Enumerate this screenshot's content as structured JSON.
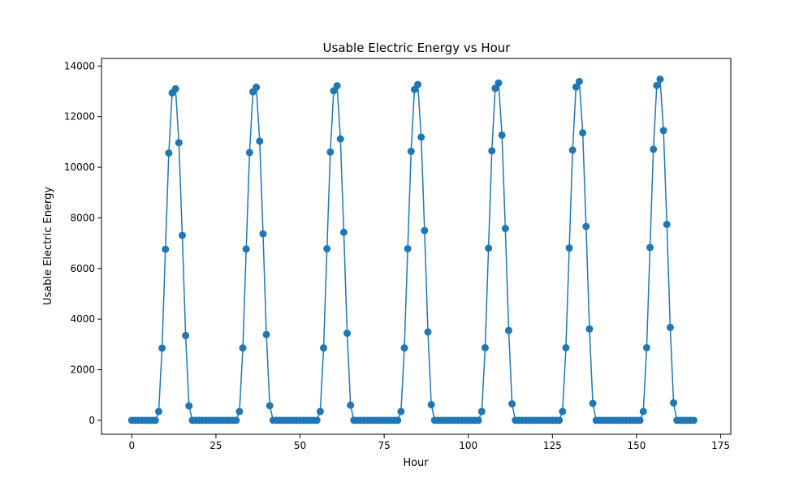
{
  "chart_data": {
    "type": "line",
    "title": "Usable Electric Energy vs Hour",
    "xlabel": "Hour",
    "ylabel": "Usable Electric Energy",
    "xlim": [
      -9,
      178
    ],
    "ylim": [
      -550,
      14300
    ],
    "xticks": [
      0,
      25,
      50,
      75,
      100,
      125,
      150,
      175
    ],
    "yticks": [
      0,
      2000,
      4000,
      6000,
      8000,
      10000,
      12000,
      14000
    ],
    "grid": false,
    "marker": "circle",
    "colors": {
      "series": "#1f77b4",
      "axis": "#000000"
    },
    "series": [
      {
        "x": [
          0,
          1,
          2,
          3,
          4,
          5,
          6,
          7,
          8,
          9,
          10,
          11,
          12,
          13,
          14,
          15,
          16,
          17,
          18,
          19,
          20,
          21,
          22,
          23,
          24,
          25,
          26,
          27,
          28,
          29,
          30,
          31,
          32,
          33,
          34,
          35,
          36,
          37,
          38,
          39,
          40,
          41,
          42,
          43,
          44,
          45,
          46,
          47,
          48,
          49,
          50,
          51,
          52,
          53,
          54,
          55,
          56,
          57,
          58,
          59,
          60,
          61,
          62,
          63,
          64,
          65,
          66,
          67,
          68,
          69,
          70,
          71,
          72,
          73,
          74,
          75,
          76,
          77,
          78,
          79,
          80,
          81,
          82,
          83,
          84,
          85,
          86,
          87,
          88,
          89,
          90,
          91,
          92,
          93,
          94,
          95,
          96,
          97,
          98,
          99,
          100,
          101,
          102,
          103,
          104,
          105,
          106,
          107,
          108,
          109,
          110,
          111,
          112,
          113,
          114,
          115,
          116,
          117,
          118,
          119,
          120,
          121,
          122,
          123,
          124,
          125,
          126,
          127,
          128,
          129,
          130,
          131,
          132,
          133,
          134,
          135,
          136,
          137,
          138,
          139,
          140,
          141,
          142,
          143,
          144,
          145,
          146,
          147,
          148,
          149,
          150,
          151,
          152,
          153,
          154,
          155,
          156,
          157,
          158,
          159,
          160,
          161,
          162,
          163,
          164,
          165,
          166,
          167
        ],
        "y": [
          0,
          0,
          0,
          0,
          0,
          0,
          0,
          0,
          350,
          2850,
          6760,
          10560,
          12940,
          13100,
          10970,
          7310,
          3350,
          570,
          0,
          0,
          0,
          0,
          0,
          0,
          0,
          0,
          0,
          0,
          0,
          0,
          0,
          0,
          350,
          2860,
          6770,
          10580,
          12980,
          13160,
          11030,
          7370,
          3390,
          580,
          0,
          0,
          0,
          0,
          0,
          0,
          0,
          0,
          0,
          0,
          0,
          0,
          0,
          0,
          350,
          2860,
          6780,
          10600,
          13020,
          13220,
          11120,
          7430,
          3440,
          600,
          0,
          0,
          0,
          0,
          0,
          0,
          0,
          0,
          0,
          0,
          0,
          0,
          0,
          0,
          350,
          2860,
          6780,
          10630,
          13070,
          13270,
          11190,
          7500,
          3490,
          620,
          0,
          0,
          0,
          0,
          0,
          0,
          0,
          0,
          0,
          0,
          0,
          0,
          0,
          0,
          350,
          2870,
          6800,
          10650,
          13120,
          13330,
          11270,
          7580,
          3550,
          650,
          0,
          0,
          0,
          0,
          0,
          0,
          0,
          0,
          0,
          0,
          0,
          0,
          0,
          0,
          350,
          2870,
          6810,
          10680,
          13170,
          13390,
          11360,
          7660,
          3610,
          670,
          0,
          0,
          0,
          0,
          0,
          0,
          0,
          0,
          0,
          0,
          0,
          0,
          0,
          0,
          350,
          2870,
          6830,
          10710,
          13230,
          13480,
          11450,
          7740,
          3670,
          690,
          0,
          0,
          0,
          0,
          0,
          0
        ]
      }
    ]
  }
}
